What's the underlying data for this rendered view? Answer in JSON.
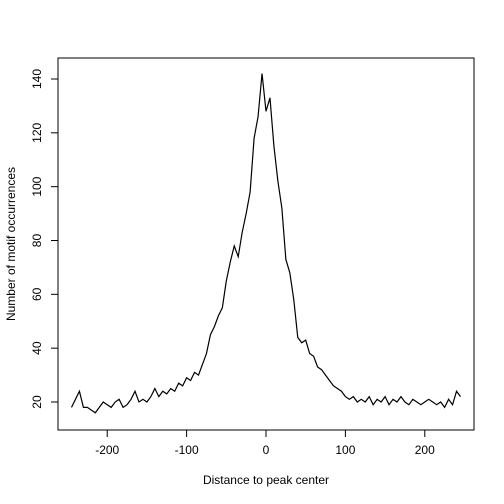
{
  "chart_data": {
    "type": "line",
    "xlabel": "Distance to peak center",
    "ylabel": "Number of motif occurrences",
    "x": [
      -245,
      -240,
      -235,
      -230,
      -225,
      -220,
      -215,
      -210,
      -205,
      -200,
      -195,
      -190,
      -185,
      -180,
      -175,
      -170,
      -165,
      -160,
      -155,
      -150,
      -145,
      -140,
      -135,
      -130,
      -125,
      -120,
      -115,
      -110,
      -105,
      -100,
      -95,
      -90,
      -85,
      -80,
      -75,
      -70,
      -65,
      -60,
      -55,
      -50,
      -45,
      -40,
      -35,
      -30,
      -25,
      -20,
      -15,
      -10,
      -5,
      0,
      5,
      10,
      15,
      20,
      25,
      30,
      35,
      40,
      45,
      50,
      55,
      60,
      65,
      70,
      75,
      80,
      85,
      90,
      95,
      100,
      105,
      110,
      115,
      120,
      125,
      130,
      135,
      140,
      145,
      150,
      155,
      160,
      165,
      170,
      175,
      180,
      185,
      190,
      195,
      200,
      205,
      210,
      215,
      220,
      225,
      230,
      235,
      240,
      245
    ],
    "series": [
      {
        "color": "#000000",
        "values": [
          18,
          21,
          24,
          18,
          18,
          17,
          16,
          18,
          20,
          19,
          18,
          20,
          21,
          18,
          19,
          21,
          24,
          20,
          21,
          20,
          22,
          25,
          22,
          24,
          23,
          25,
          24,
          27,
          26,
          29,
          28,
          31,
          30,
          34,
          38,
          45,
          48,
          52,
          55,
          65,
          72,
          78,
          74,
          83,
          90,
          98,
          118,
          126,
          142,
          128,
          133,
          115,
          102,
          92,
          73,
          68,
          58,
          44,
          42,
          43,
          38,
          37,
          33,
          32,
          30,
          28,
          26,
          25,
          24,
          22,
          21,
          22,
          20,
          21,
          20,
          22,
          19,
          21,
          20,
          22,
          19,
          21,
          20,
          22,
          20,
          19,
          21,
          20,
          19,
          20,
          21,
          20,
          19,
          20,
          18,
          21,
          19,
          24,
          22
        ]
      }
    ],
    "xlim": [
      -262,
      262
    ],
    "ylim": [
      9.6,
      147.8
    ],
    "xticks": [
      -200,
      -100,
      0,
      100,
      200
    ],
    "yticks": [
      20,
      40,
      60,
      80,
      100,
      120,
      140
    ]
  }
}
